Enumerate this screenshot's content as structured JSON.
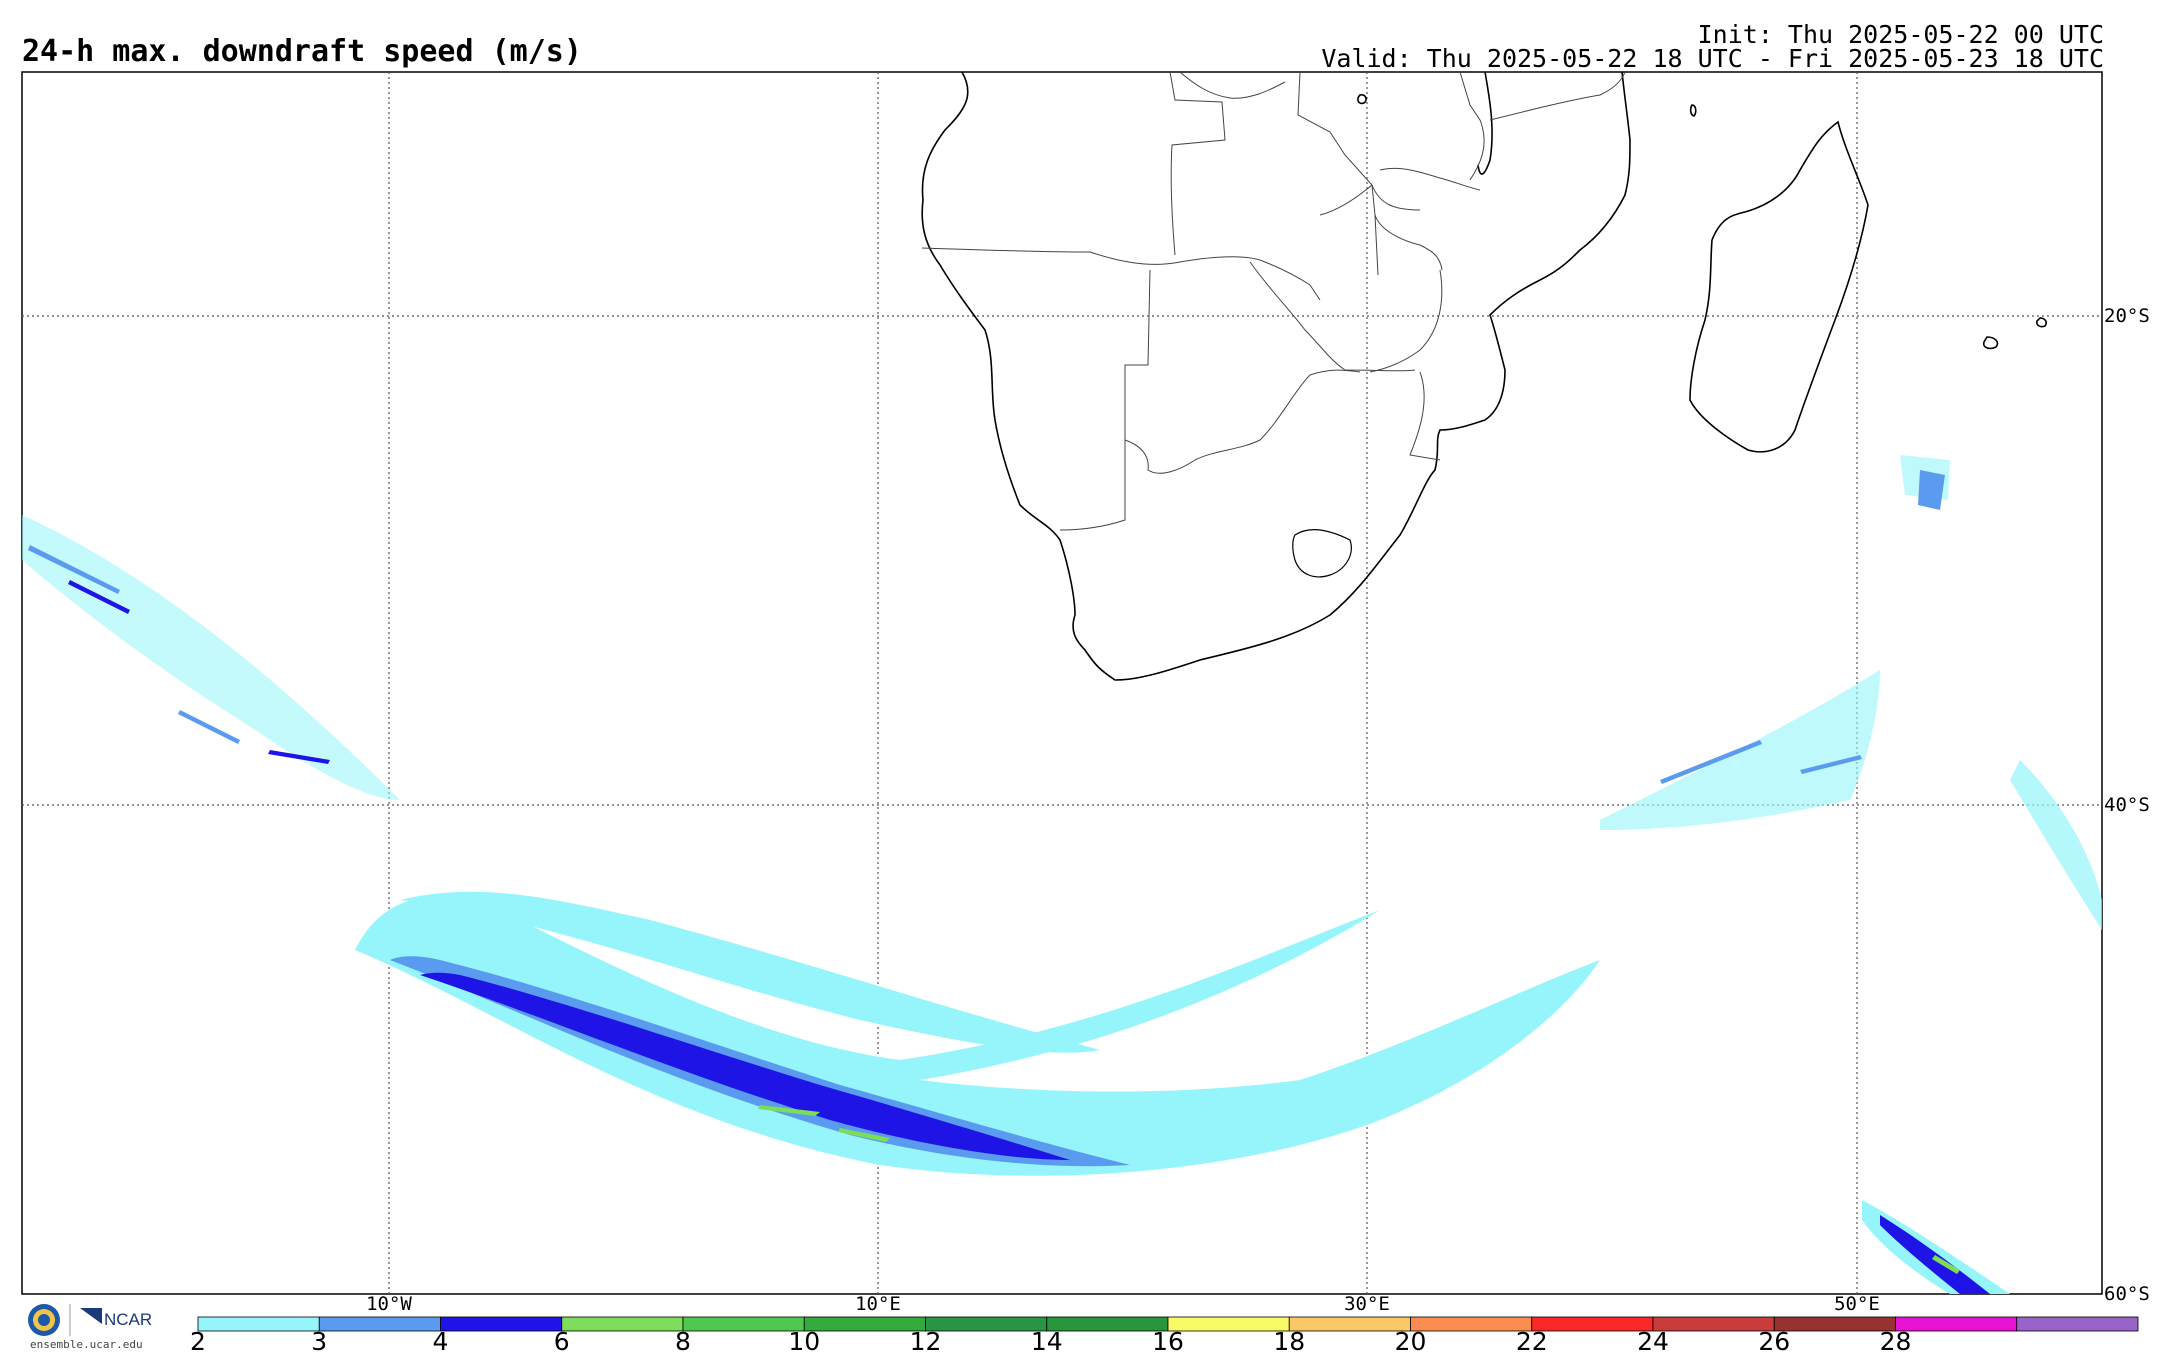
{
  "header": {
    "title": "24-h max. downdraft speed (m/s)",
    "init": "Init: Thu 2025-05-22 00 UTC",
    "valid": "Valid: Thu 2025-05-22 18 UTC - Fri 2025-05-23 18 UTC"
  },
  "grid": {
    "lat_labels": [
      "20°S",
      "40°S",
      "60°S"
    ],
    "lon_labels": [
      "10°W",
      "10°E",
      "30°E",
      "50°E"
    ]
  },
  "colorbar": {
    "ticks": [
      "2",
      "3",
      "4",
      "6",
      "8",
      "10",
      "12",
      "14",
      "16",
      "18",
      "20",
      "22",
      "24",
      "26",
      "28"
    ],
    "colors": [
      "#96f5fa",
      "#5a9bf0",
      "#1e14e6",
      "#7ddc5a",
      "#50c850",
      "#32aa3c",
      "#289646",
      "#28963c",
      "#fafa64",
      "#fac864",
      "#fa8c50",
      "#fa2828",
      "#c83c3c",
      "#963232",
      "#e614d2",
      "#9664c8"
    ]
  },
  "logo": {
    "org": "NCAR",
    "url": "ensemble.ucar.edu"
  }
}
